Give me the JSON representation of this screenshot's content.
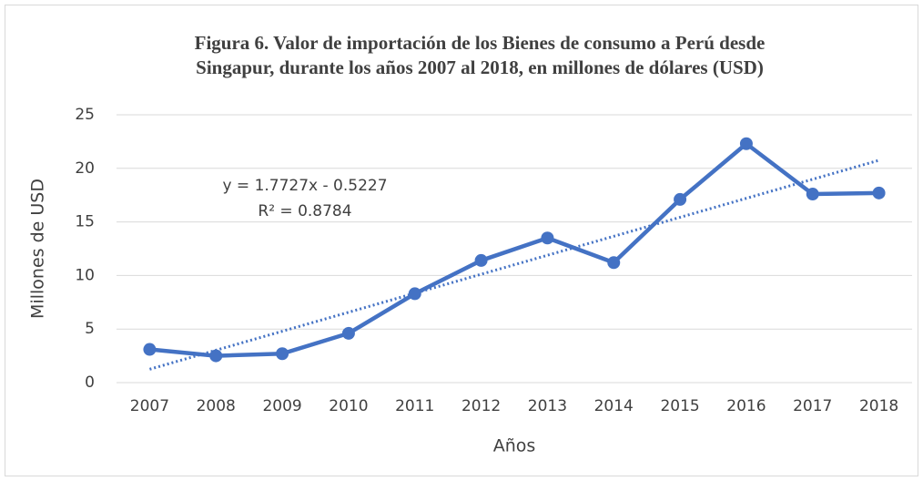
{
  "chart_data": {
    "type": "line",
    "title": [
      "Figura 6. Valor de importación de los Bienes de consumo a Perú desde",
      "Singapur, durante los años 2007 al 2018, en millones de dólares (USD)"
    ],
    "x_label": "Años",
    "y_label": "Millones de USD",
    "categories": [
      "2007",
      "2008",
      "2009",
      "2010",
      "2011",
      "2012",
      "2013",
      "2014",
      "2015",
      "2016",
      "2017",
      "2018"
    ],
    "series": [
      {
        "name": "Valor de importación",
        "color": "#4472c4",
        "values": [
          3.1,
          2.5,
          2.7,
          4.6,
          8.3,
          11.4,
          13.5,
          11.2,
          17.1,
          22.3,
          17.6,
          17.7
        ]
      }
    ],
    "trendline": {
      "slope": 1.7727,
      "intercept": -0.5227,
      "equation": "y = 1.7727x - 0.5227",
      "r_squared": "R² = 0.8784",
      "color": "#4472c4"
    },
    "ylim": [
      0,
      25
    ],
    "yticks": [
      0,
      5,
      10,
      15,
      20,
      25
    ],
    "grid": true
  }
}
